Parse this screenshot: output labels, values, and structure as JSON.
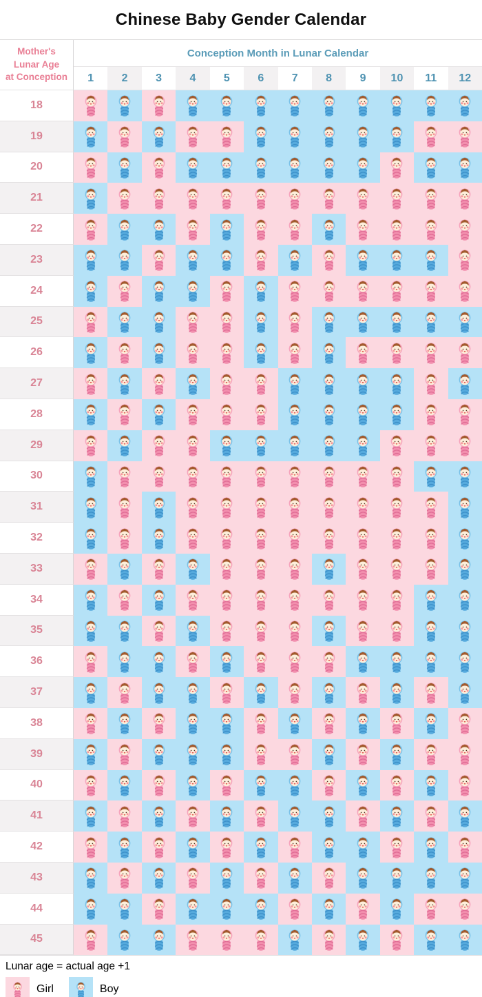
{
  "title": "Chinese Baby Gender Calendar",
  "table": {
    "row_header_lines": [
      "Mother's",
      "Lunar Age",
      "at Conception"
    ],
    "col_header": "Conception Month in Lunar Calendar"
  },
  "legend": {
    "note": "Lunar age = actual age +1",
    "girl_label": "Girl",
    "boy_label": "Boy"
  },
  "colors": {
    "girl_cell_bg": "#fcd8e0",
    "boy_cell_bg": "#b5e2f7",
    "girl_swaddle": "#f28fae",
    "boy_swaddle": "#56aadd",
    "pink_header_text": "#e97f95",
    "blue_header_text": "#5b9cb8",
    "age_text": "#d98495",
    "stripe_gray": "#f3f1f2"
  },
  "chart_data": {
    "type": "heatmap",
    "title": "Chinese Baby Gender Calendar",
    "x_label": "Conception Month in Lunar Calendar",
    "y_label": "Mother's Lunar Age at Conception",
    "legend": [
      "Girl",
      "Boy"
    ],
    "cell_encoding": "G = girl (pink), B = boy (blue); one character per lunar month 1-12",
    "columns": [
      "1",
      "2",
      "3",
      "4",
      "5",
      "6",
      "7",
      "8",
      "9",
      "10",
      "11",
      "12"
    ],
    "rows": [
      {
        "age": "18",
        "pattern": "GBGBBBBBBBBB"
      },
      {
        "age": "19",
        "pattern": "BGBGGBBBBBGG"
      },
      {
        "age": "20",
        "pattern": "GBGBBBBBBGBB"
      },
      {
        "age": "21",
        "pattern": "BGGGGGGGGGGG"
      },
      {
        "age": "22",
        "pattern": "GBBGBGGBGGGG"
      },
      {
        "age": "23",
        "pattern": "BBGBBGBGBBBG"
      },
      {
        "age": "24",
        "pattern": "BGBBGBGGGGGG"
      },
      {
        "age": "25",
        "pattern": "GBBGGBGBBBBB"
      },
      {
        "age": "26",
        "pattern": "BGBGGBGBGGGG"
      },
      {
        "age": "27",
        "pattern": "GBGBGGBBBBGB"
      },
      {
        "age": "28",
        "pattern": "BGBGGGBBBBGG"
      },
      {
        "age": "29",
        "pattern": "GBGGBBBBBGGG"
      },
      {
        "age": "30",
        "pattern": "BGGGGGGGGGBB"
      },
      {
        "age": "31",
        "pattern": "BGBGGGGGGGGB"
      },
      {
        "age": "32",
        "pattern": "BGBGGGGGGGGB"
      },
      {
        "age": "33",
        "pattern": "GBGBGGGBGGGB"
      },
      {
        "age": "34",
        "pattern": "BGBGGGGGGGBB"
      },
      {
        "age": "35",
        "pattern": "BBGBGGGBGGBB"
      },
      {
        "age": "36",
        "pattern": "GBBGBGGGBBBB"
      },
      {
        "age": "37",
        "pattern": "BGBBGBGBGBGB"
      },
      {
        "age": "38",
        "pattern": "GBGBBGBGBGBG"
      },
      {
        "age": "39",
        "pattern": "BGBBBGGBGBGG"
      },
      {
        "age": "40",
        "pattern": "GBGBGBBGBGBG"
      },
      {
        "age": "41",
        "pattern": "BGBGBGBBGBGB"
      },
      {
        "age": "42",
        "pattern": "GBGBGBGBBGBG"
      },
      {
        "age": "43",
        "pattern": "BGBGBGBGBBBB"
      },
      {
        "age": "44",
        "pattern": "BBGBBBGBGBGG"
      },
      {
        "age": "45",
        "pattern": "GBBGGGBGBGBB"
      }
    ]
  }
}
